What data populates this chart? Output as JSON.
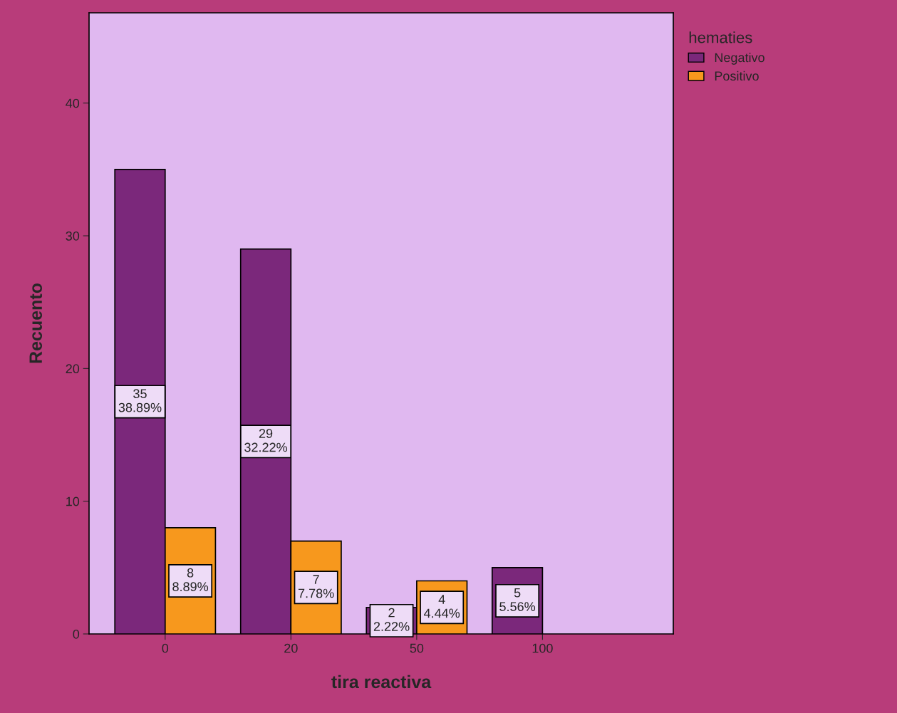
{
  "chart_data": {
    "type": "bar",
    "xlabel": "tira reactiva",
    "ylabel": "Recuento",
    "legend_title": "hematies",
    "categories": [
      "0",
      "20",
      "50",
      "100"
    ],
    "series": [
      {
        "name": "Negativo",
        "color": "#7b287b",
        "values": [
          35,
          29,
          2,
          5
        ],
        "value_labels": [
          "35\n38.89%",
          "29\n32.22%",
          "2\n2.22%",
          "5\n5.56%"
        ]
      },
      {
        "name": "Positivo",
        "color": "#f7981d",
        "values": [
          8,
          7,
          4,
          null
        ],
        "value_labels": [
          "8\n8.89%",
          "7\n7.78%",
          "4\n4.44%",
          null
        ]
      }
    ],
    "ylim": [
      0,
      46.8
    ],
    "yticks": [
      0,
      10,
      20,
      30,
      40
    ],
    "grid": false,
    "legend": "top right"
  }
}
